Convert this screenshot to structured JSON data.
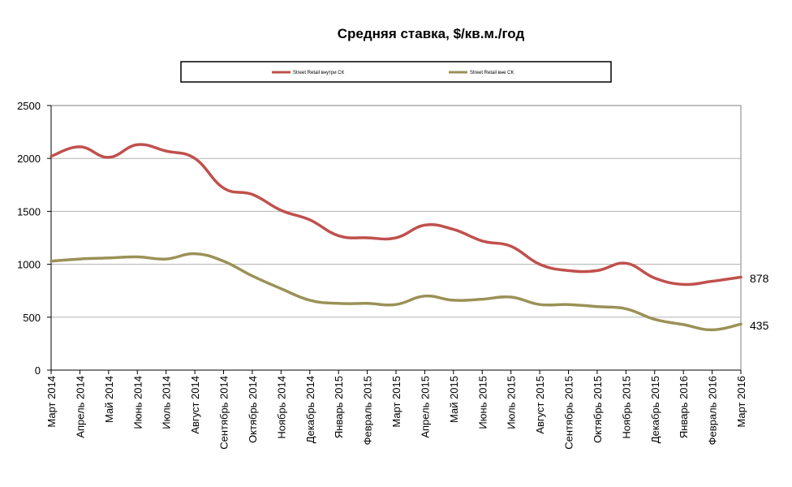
{
  "chart_data": {
    "type": "line",
    "title": "Средняя ставка, $/кв.м./год",
    "categories": [
      "Март 2014",
      "Апрель 2014",
      "Май 2014",
      "Июнь 2014",
      "Июль 2014",
      "Август 2014",
      "Сентябрь 2014",
      "Октябрь 2014",
      "Ноябрь 2014",
      "Декабрь 2014",
      "Январь 2015",
      "Февраль 2015",
      "Март 2015",
      "Апрель 2015",
      "Май 2015",
      "Июнь 2015",
      "Июль 2015",
      "Август 2015",
      "Сентябрь 2015",
      "Октябрь 2015",
      "Ноябрь 2015",
      "Декабрь 2015",
      "Январь 2016",
      "Февраль 2016",
      "Март 2016"
    ],
    "series": [
      {
        "name": "Street Retail внутри СК",
        "color": "#c0504d",
        "values": [
          2020,
          2110,
          2010,
          2130,
          2070,
          2000,
          1720,
          1660,
          1510,
          1420,
          1270,
          1250,
          1250,
          1370,
          1330,
          1220,
          1170,
          1000,
          940,
          940,
          1010,
          870,
          810,
          840,
          878
        ]
      },
      {
        "name": "Street Retail вне СК",
        "color": "#9b9157",
        "values": [
          1030,
          1050,
          1060,
          1070,
          1050,
          1100,
          1030,
          890,
          770,
          660,
          630,
          630,
          620,
          700,
          660,
          670,
          690,
          620,
          620,
          600,
          580,
          480,
          430,
          380,
          435
        ]
      }
    ],
    "ylim": [
      0,
      2500
    ],
    "yticks": [
      0,
      500,
      1000,
      1500,
      2000,
      2500
    ],
    "grid": true,
    "legend": "top",
    "end_labels": [
      "878",
      "435"
    ]
  }
}
